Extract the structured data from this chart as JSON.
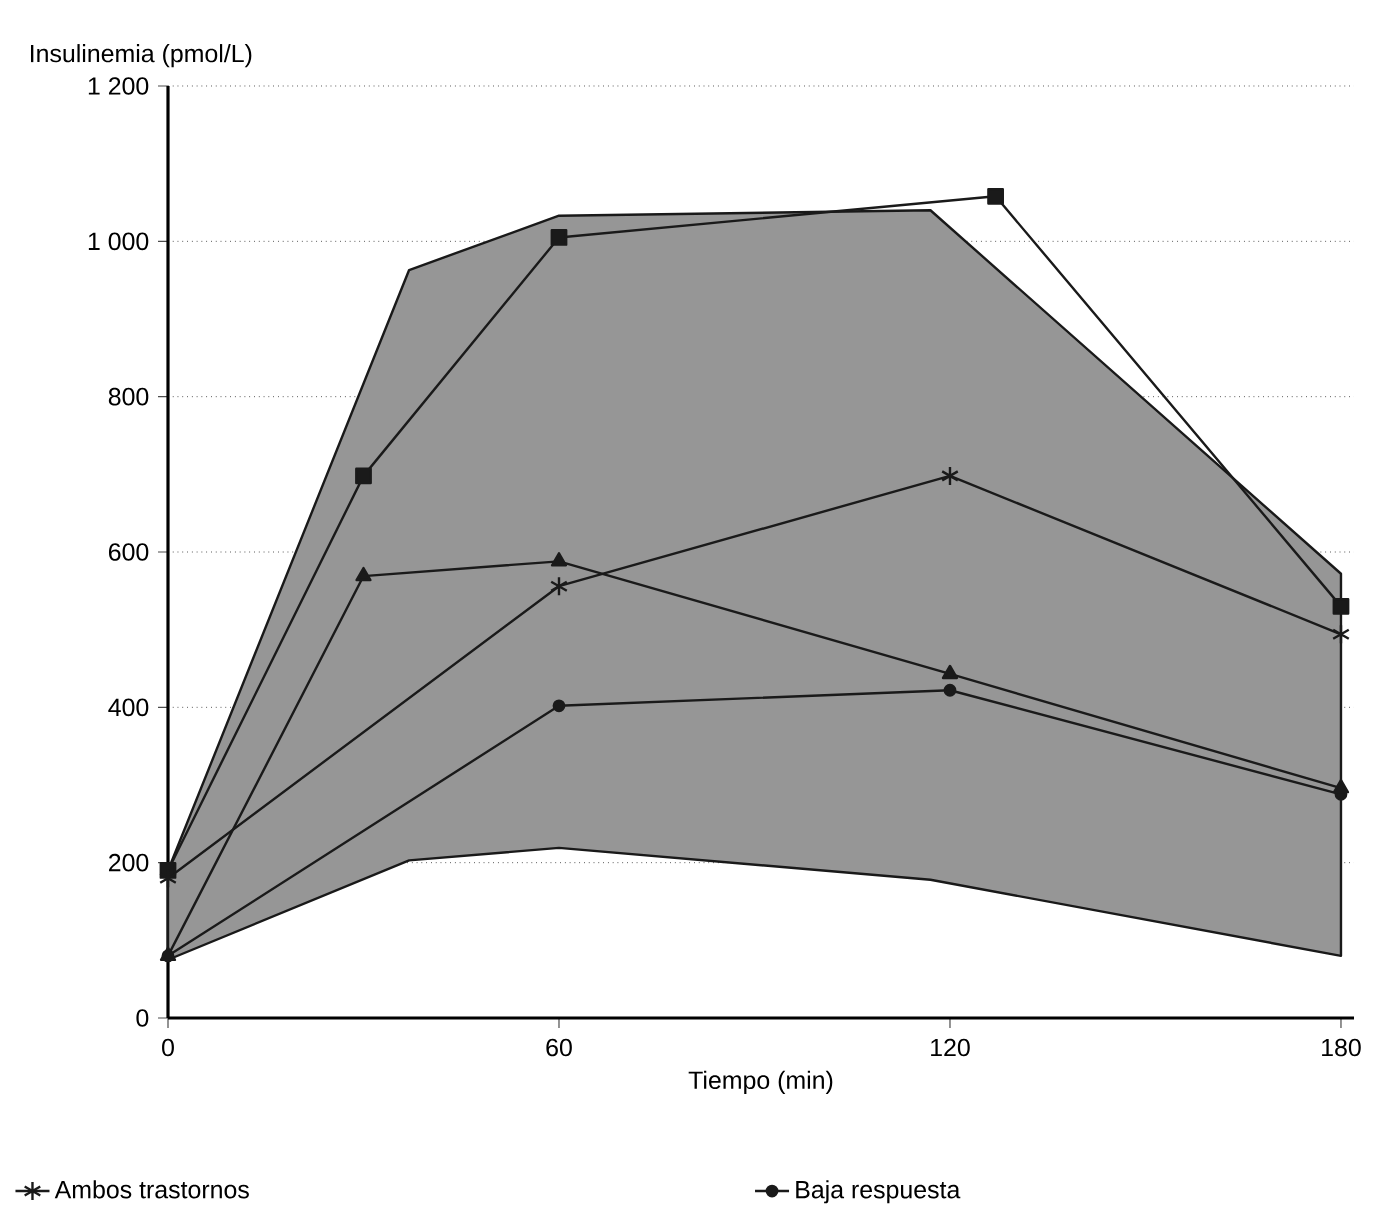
{
  "chart_data": {
    "type": "line",
    "xlabel": "Tiempo (min)",
    "ylabel": "Insulinemia (pmol/L)",
    "xlim": [
      0,
      182
    ],
    "xticks": [
      0,
      60,
      120,
      180
    ],
    "ylim": [
      0,
      1200
    ],
    "yticks": [
      0,
      200,
      400,
      600,
      800,
      {
        "value": 1000,
        "label": "1 000"
      },
      {
        "value": 1200,
        "label": "1 200"
      }
    ],
    "grid": "y",
    "legend": "bottom",
    "series": [
      {
        "type": "area",
        "color": "#969696",
        "x": [
          0,
          37,
          60,
          117,
          180
        ],
        "values": [
          null,
          null,
          null,
          null,
          null
        ],
        "lower": [
          75,
          203,
          219,
          178,
          80
        ],
        "upper": [
          190,
          963,
          1033,
          1040,
          572
        ],
        "marker": "none"
      },
      {
        "color": "#1a1a1a",
        "x": [
          0,
          30,
          60,
          127,
          180
        ],
        "values": [
          190,
          698,
          1005,
          1058,
          530
        ],
        "marker": "square"
      },
      {
        "name": "Ambos trastornos",
        "color": "#1a1a1a",
        "x": [
          0,
          60,
          120,
          180
        ],
        "values": [
          180,
          556,
          698,
          494
        ],
        "marker": "cross"
      },
      {
        "name": "Baja respuesta",
        "color": "#1a1a1a",
        "x": [
          0,
          60,
          120,
          180
        ],
        "values": [
          80,
          402,
          422,
          288
        ],
        "marker": "circle"
      },
      {
        "color": "#1a1a1a",
        "x": [
          0,
          30,
          60,
          120,
          180
        ],
        "values": [
          80,
          569,
          588,
          443,
          296
        ],
        "marker": "triangle"
      }
    ]
  }
}
